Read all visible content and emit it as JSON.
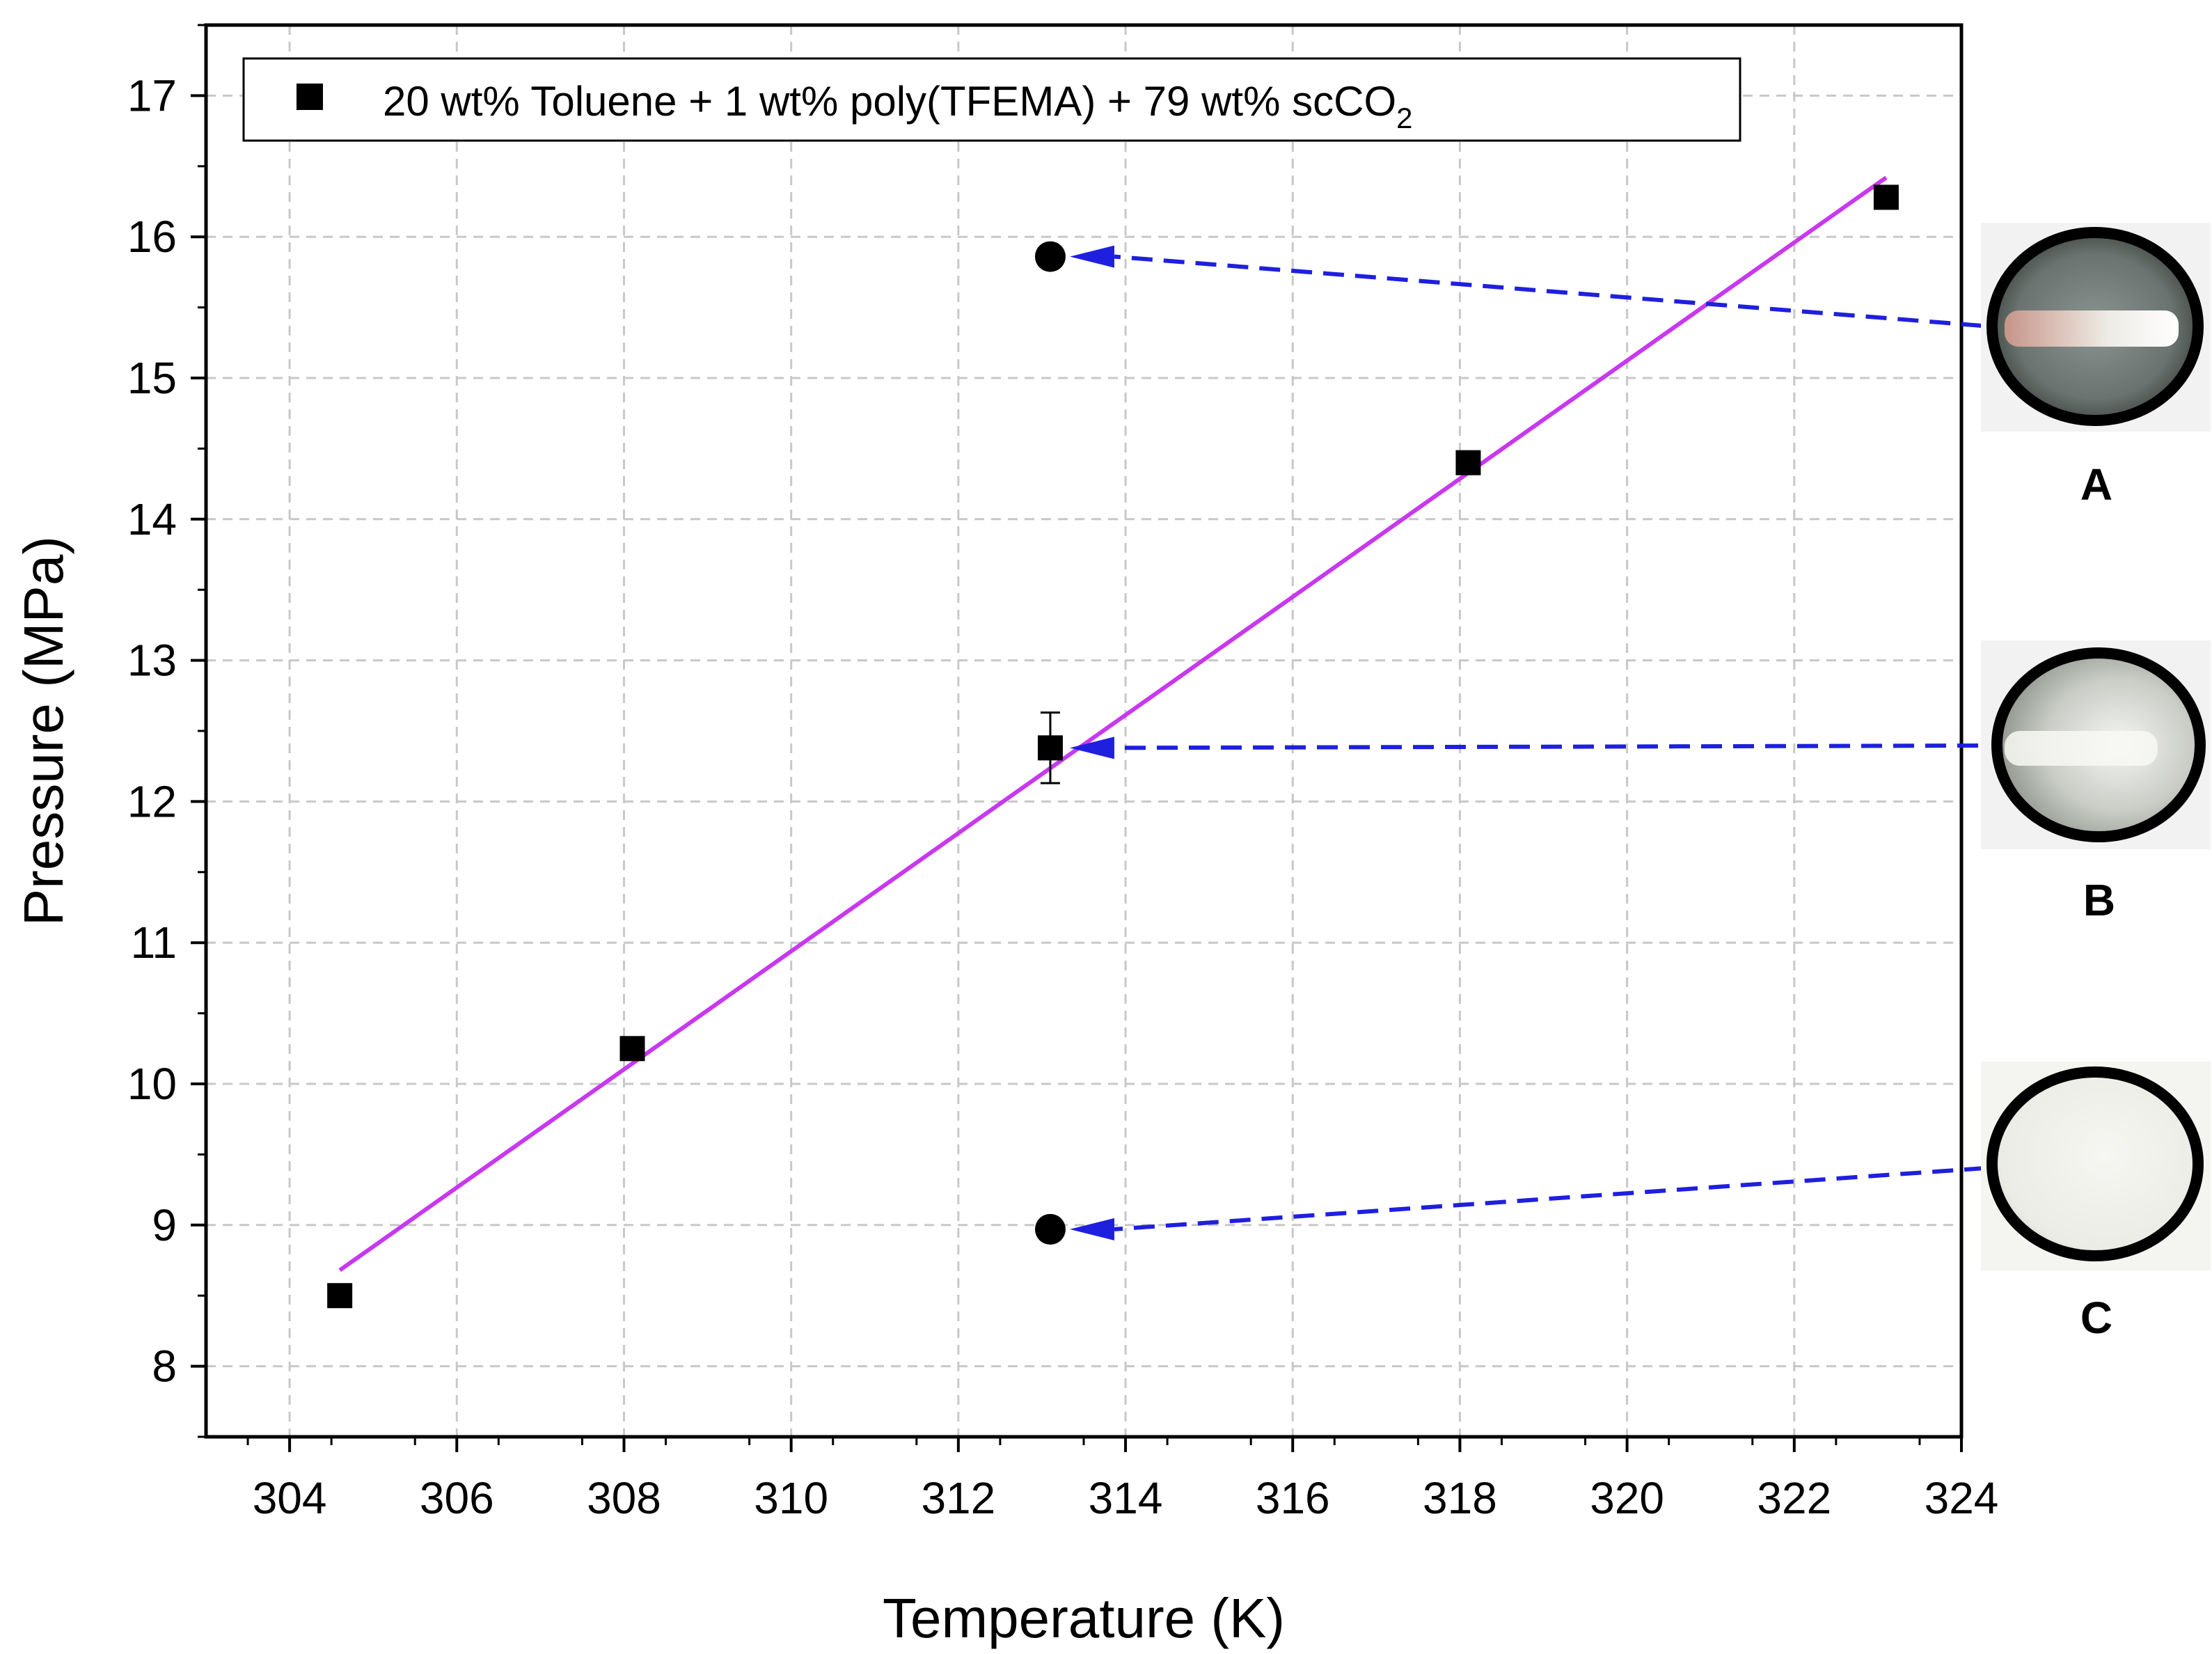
{
  "chart_data": {
    "type": "scatter",
    "xlabel": "Temperature (K)",
    "ylabel": "Pressure (MPa)",
    "xlim": [
      303,
      324
    ],
    "ylim": [
      7.5,
      17.5
    ],
    "x_ticks": [
      "304",
      "306",
      "308",
      "310",
      "312",
      "314",
      "316",
      "318",
      "320",
      "322",
      "324"
    ],
    "y_ticks": [
      "8",
      "9",
      "10",
      "11",
      "12",
      "13",
      "14",
      "15",
      "16",
      "17"
    ],
    "grid": true,
    "legend": {
      "placement": "top-left",
      "label_prefix": "20 wt% Toluene +  1 wt% poly(TFEMA) + 79 wt% scCO",
      "label_subscript": "2"
    },
    "series": [
      {
        "name": "20 wt% Toluene + 1 wt% poly(TFEMA) + 79 wt% scCO2",
        "marker": "square",
        "color": "#000000",
        "x": [
          304.6,
          308.1,
          313.1,
          318.1,
          323.1
        ],
        "y": [
          8.5,
          10.25,
          12.38,
          14.4,
          16.28
        ],
        "errors": [
          0,
          0,
          0.25,
          0,
          0
        ]
      }
    ],
    "fit_line": {
      "color": "#c838f0",
      "x": [
        304.6,
        323.1
      ],
      "y": [
        8.68,
        16.42
      ]
    },
    "annotation_points": [
      {
        "label": "A",
        "x": 313.1,
        "y": 15.86,
        "marker": "circle"
      },
      {
        "label": "B",
        "x": 313.1,
        "y": 12.38,
        "marker": "none"
      },
      {
        "label": "C",
        "x": 313.1,
        "y": 8.97,
        "marker": "circle"
      }
    ],
    "arrow_color": "#1f1fe0",
    "photo_labels": [
      "A",
      "B",
      "C"
    ]
  }
}
